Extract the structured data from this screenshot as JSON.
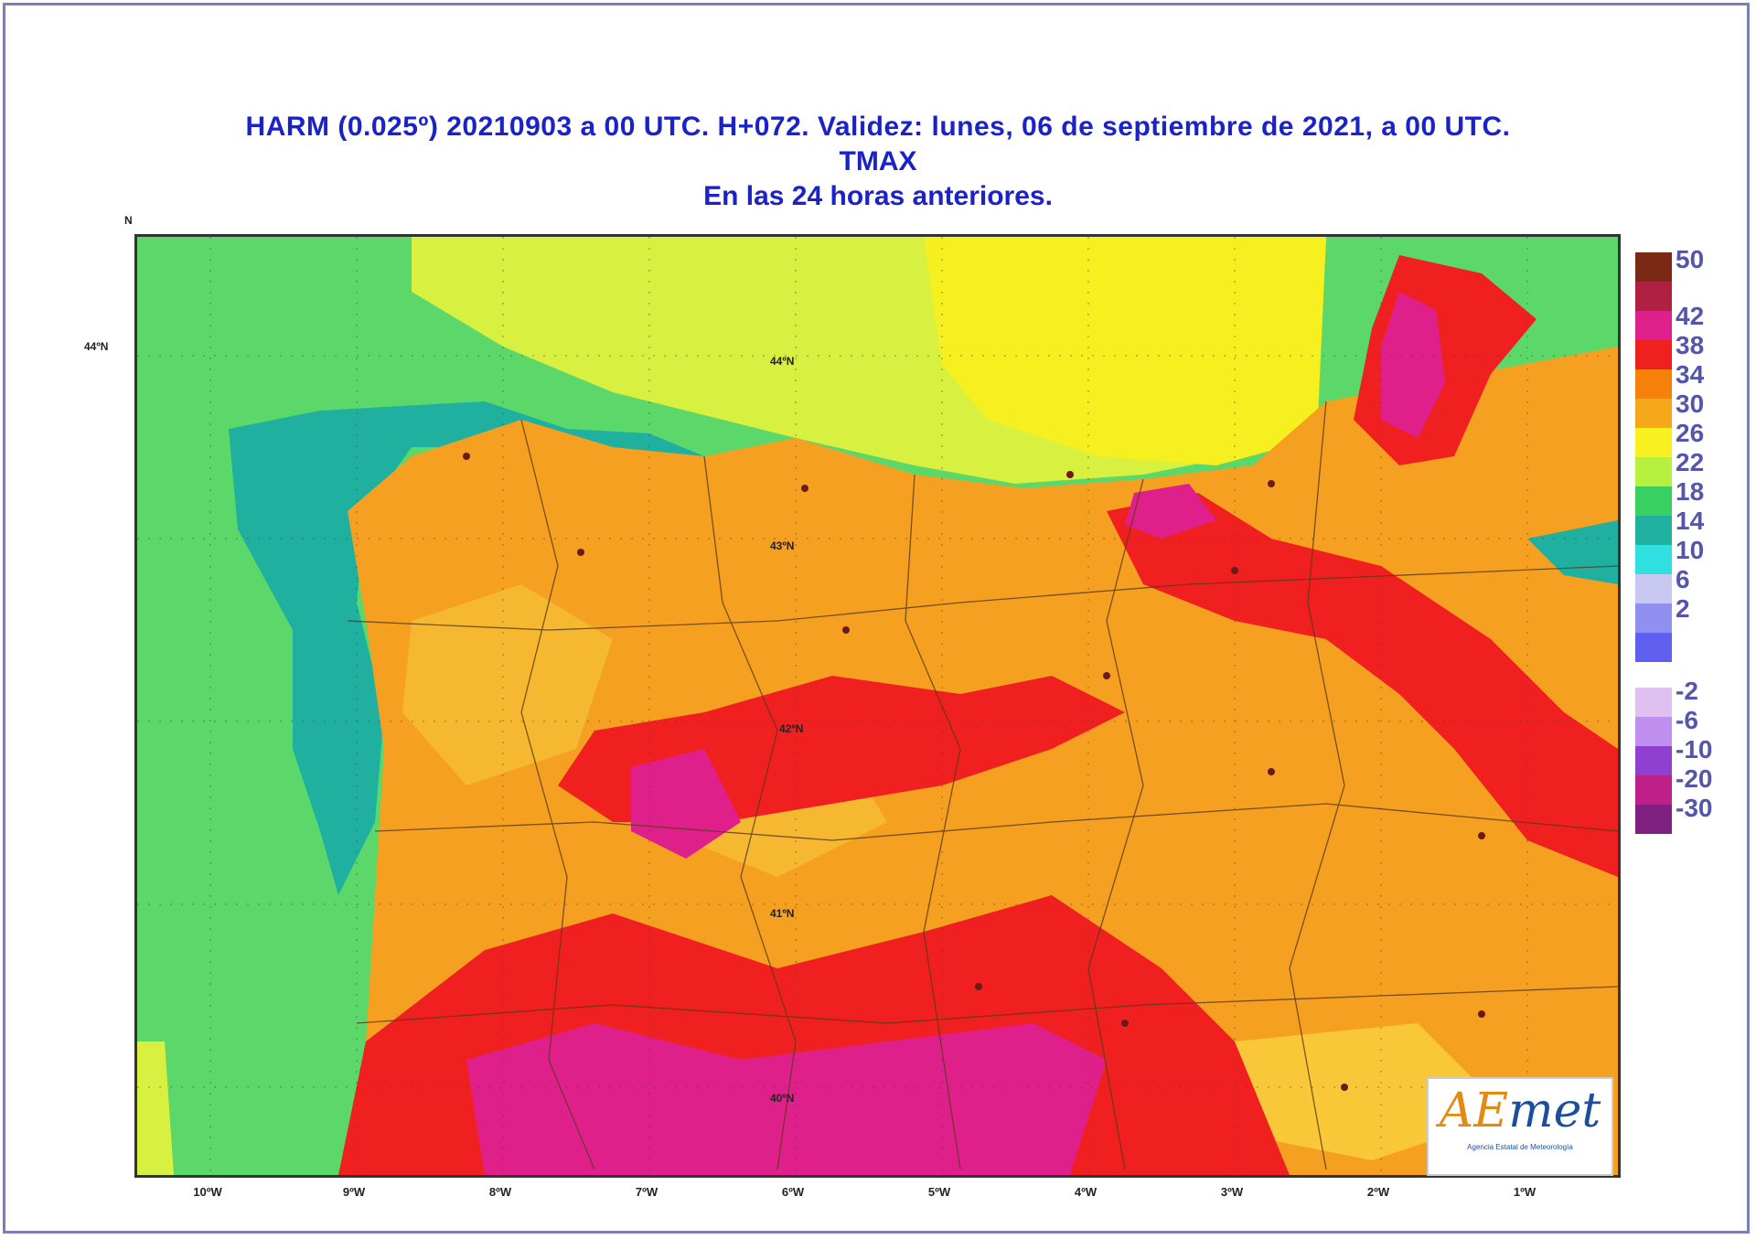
{
  "title": {
    "line1": "HARM (0.025º) 20210903 a 00 UTC.  H+072. Validez: lunes, 06 de septiembre de 2021,  a  00 UTC.",
    "line2": "TMAX",
    "line3": "En las 24 horas anteriores."
  },
  "corner_mark": "N",
  "lon_labels": [
    "10ºW",
    "9ºW",
    "8ºW",
    "7ºW",
    "6ºW",
    "5ºW",
    "4ºW",
    "3ºW",
    "2ºW",
    "1ºW"
  ],
  "lat_labels": [
    "44ºN"
  ],
  "map_labels": [
    "44ºN",
    "43ºN",
    "42ºN",
    "41ºN",
    "40ºN"
  ],
  "colorbar": {
    "positive_ticks": [
      "50",
      "42",
      "38",
      "34",
      "30",
      "26",
      "22",
      "18",
      "14",
      "10",
      "6",
      "2"
    ],
    "negative_ticks": [
      "-2",
      "-6",
      "-10",
      "-20",
      "-30"
    ],
    "positive_colors": [
      "#7a2a14",
      "#b02040",
      "#e0208a",
      "#f02020",
      "#f5800a",
      "#f5a81a",
      "#f8f020",
      "#b8f040",
      "#38d060",
      "#20b0a0",
      "#30e0e0",
      "#c8c8f0",
      "#9090f0",
      "#6060f0"
    ],
    "negative_colors": [
      "#e0c0f0",
      "#c090f0",
      "#9040d0",
      "#c0208a",
      "#802080"
    ]
  },
  "logo": {
    "text_ae": "AE",
    "text_rest": "met",
    "subtitle": "Agencia Estatal de Meteorología"
  }
}
